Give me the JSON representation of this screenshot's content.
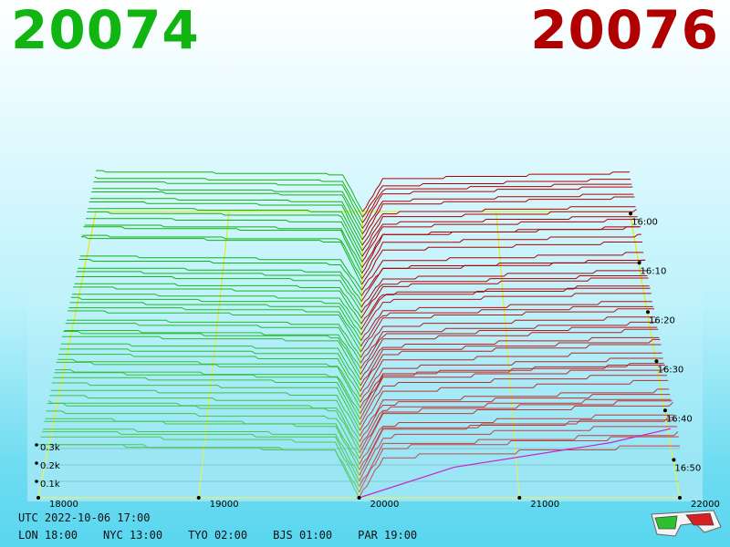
{
  "header": {
    "bid_price": "20074",
    "ask_price": "20076"
  },
  "colors": {
    "bid": "#11b511",
    "ask": "#b10000",
    "grid": "#e8e800",
    "baseline": "#cc22cc"
  },
  "time": {
    "utc": "UTC 2022-10-06 17:00",
    "zones": [
      "LON 18:00",
      "NYC 13:00",
      "TYO 02:00",
      "BJS 01:00",
      "PAR 19:00"
    ]
  },
  "chart_data": {
    "type": "area",
    "title": "",
    "price_ticks": [
      "18000",
      "19000",
      "20000",
      "21000",
      "22000"
    ],
    "volume_ticks": [
      "0.1k",
      "0.2k",
      "0.3k"
    ],
    "time_ticks": [
      "16:00",
      "16:10",
      "16:20",
      "16:30",
      "16:40",
      "16:50"
    ],
    "series": [
      {
        "name": "",
        "side": "bid",
        "cumulative_volume_at_prices": [
          [
            18000,
            0.3
          ],
          [
            19000,
            0.29
          ],
          [
            19800,
            0.27
          ],
          [
            20000,
            0.0
          ]
        ]
      },
      {
        "name": "",
        "side": "ask",
        "cumulative_volume_at_prices": [
          [
            20000,
            0.0
          ],
          [
            20200,
            0.3
          ],
          [
            21000,
            0.35
          ],
          [
            22000,
            0.38
          ]
        ]
      }
    ]
  },
  "icons": {
    "glasses": "3d-glasses-icon"
  }
}
